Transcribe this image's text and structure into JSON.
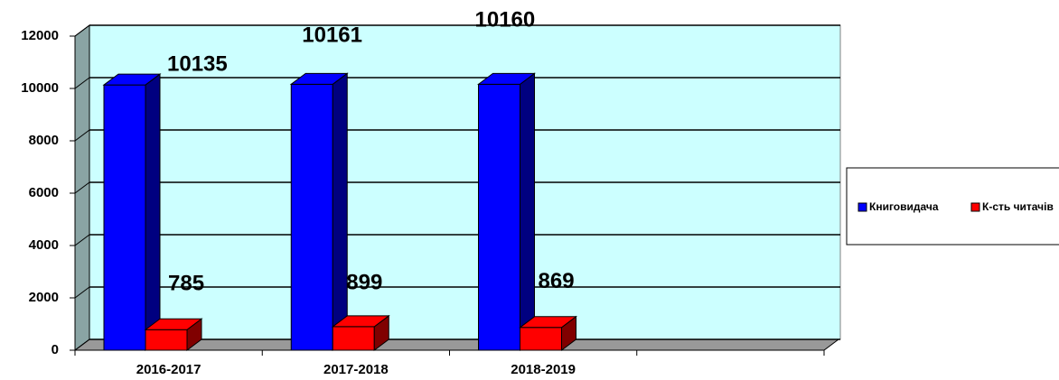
{
  "chart_data": {
    "type": "bar3d",
    "categories": [
      "2016-2017",
      "2017-2018",
      "2018-2019",
      null
    ],
    "series": [
      {
        "name": "Книговидача",
        "color": "#0000ff",
        "values": [
          10135,
          10161,
          10160,
          null
        ]
      },
      {
        "name": "К-сть читачів",
        "color": "#ff0000",
        "values": [
          785,
          899,
          869,
          null
        ]
      }
    ],
    "ylim": [
      0,
      12000
    ],
    "yticks": [
      0,
      2000,
      4000,
      6000,
      8000,
      10000,
      12000
    ],
    "grid": true,
    "legend": "right"
  }
}
